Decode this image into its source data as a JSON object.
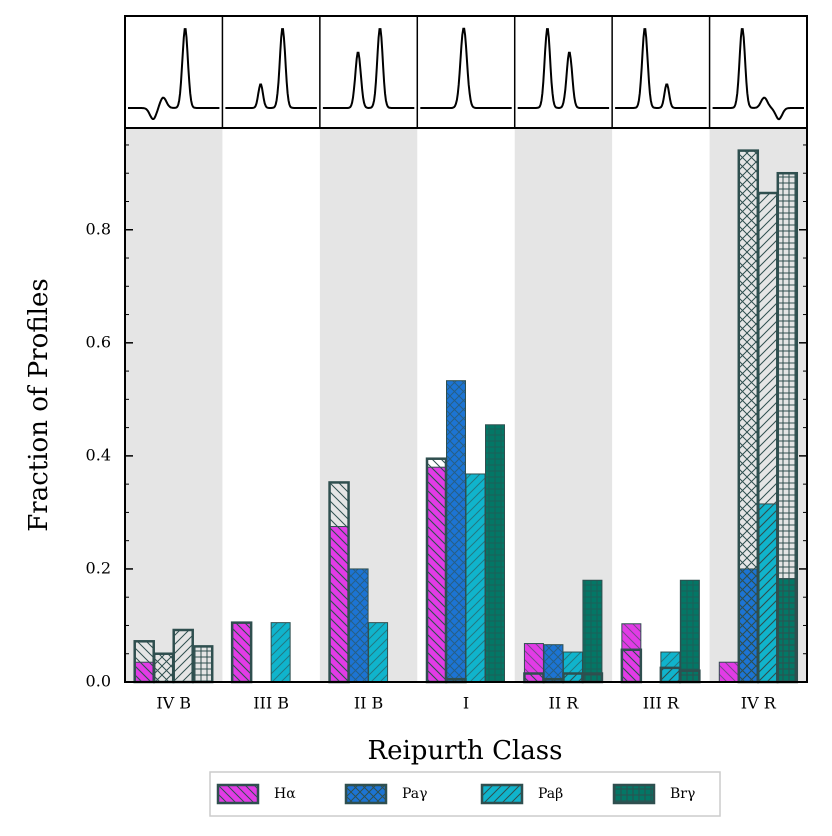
{
  "chart_data": {
    "type": "bar",
    "xlabel": "Reipurth Class",
    "ylabel": "Fraction of Profiles",
    "categories": [
      "IV B",
      "III B",
      "II B",
      "I",
      "II R",
      "III R",
      "IV R"
    ],
    "outline_color": "#2f4f4f",
    "series": [
      {
        "name": "Hα",
        "color": "#e23be6",
        "hatch": "backslash",
        "values": [
          0.035,
          0.105,
          0.275,
          0.38,
          0.068,
          0.103,
          0.035
        ],
        "outline_values": [
          0.072,
          0.105,
          0.353,
          0.395,
          0.015,
          0.057,
          0
        ]
      },
      {
        "name": "Paγ",
        "color": "#1c74d4",
        "hatch": "cross",
        "values": [
          0,
          0,
          0.2,
          0.533,
          0.066,
          0,
          0.2
        ],
        "outline_values": [
          0.05,
          0,
          0,
          0.005,
          0.005,
          0,
          0.94
        ]
      },
      {
        "name": "Paβ",
        "color": "#10b4cc",
        "hatch": "slash",
        "values": [
          0,
          0.105,
          0.105,
          0.368,
          0.053,
          0.053,
          0.315
        ],
        "outline_values": [
          0.092,
          0,
          0,
          0,
          0.015,
          0.025,
          0.865
        ]
      },
      {
        "name": "Brγ",
        "color": "#037766",
        "hatch": "plus",
        "values": [
          0,
          0,
          0,
          0.455,
          0.18,
          0.18,
          0.183
        ],
        "outline_values": [
          0.063,
          0,
          0,
          0,
          0.015,
          0.02,
          0.9
        ]
      }
    ],
    "ylim": [
      0,
      0.98
    ],
    "yticks": [
      {
        "value": 0,
        "label": "0.0"
      },
      0.2,
      0.4,
      0.6,
      0.8
    ],
    "yminorticks": [
      0.05,
      0.1,
      0.15,
      0.25,
      0.3,
      0.35,
      0.45,
      0.5,
      0.55,
      0.65,
      0.7,
      0.75,
      0.85,
      0.9,
      0.95
    ],
    "shaded_categories": true,
    "legend": "bottom"
  }
}
